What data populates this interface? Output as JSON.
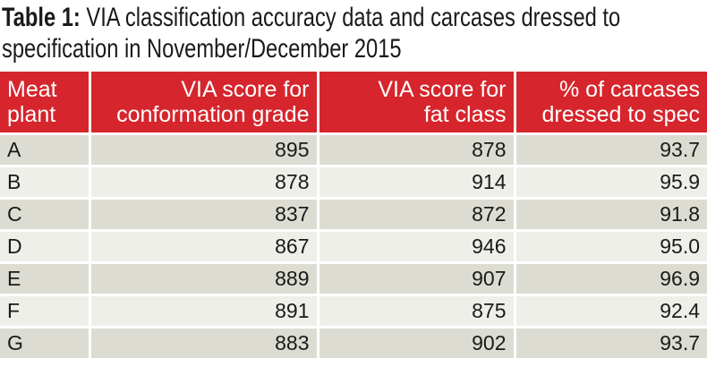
{
  "title": {
    "label": "Table 1:",
    "text_lines": [
      "VIA classification accuracy data and carcases dressed to",
      "specification in November/December 2015"
    ]
  },
  "table": {
    "header": [
      [
        "Meat",
        "plant"
      ],
      [
        "VIA score for",
        "conformation grade"
      ],
      [
        "VIA score for",
        "fat class"
      ],
      [
        "% of carcases",
        "dressed to spec"
      ]
    ],
    "rows": [
      [
        "A",
        "895",
        "878",
        "93.7"
      ],
      [
        "B",
        "878",
        "914",
        "95.9"
      ],
      [
        "C",
        "837",
        "872",
        "91.8"
      ],
      [
        "D",
        "867",
        "946",
        "95.0"
      ],
      [
        "E",
        "889",
        "907",
        "96.9"
      ],
      [
        "F",
        "891",
        "875",
        "92.4"
      ],
      [
        "G",
        "883",
        "902",
        "93.7"
      ]
    ]
  }
}
